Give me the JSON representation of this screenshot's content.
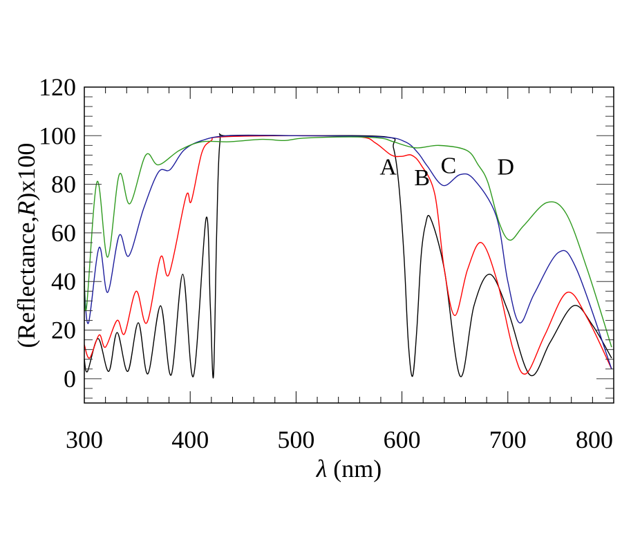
{
  "chart_data": {
    "type": "line",
    "title": "",
    "xlabel": {
      "symbol": "λ",
      "unit": " (nm)"
    },
    "ylabel": {
      "prefix": "(Reflectance,",
      "symbol": "R",
      "suffix": ")x100"
    },
    "xlim": [
      300,
      800
    ],
    "ylim": [
      -10,
      120
    ],
    "xticks": [
      300,
      400,
      500,
      600,
      700,
      800
    ],
    "yticks": [
      0,
      20,
      40,
      60,
      80,
      100,
      120
    ],
    "x_minor_step": 20,
    "y_minor_step": 4,
    "grid": false,
    "legend": "none",
    "series": [
      {
        "name": "A",
        "color": "#000000",
        "points": [
          [
            300,
            8
          ],
          [
            303,
            3
          ],
          [
            313,
            16.5
          ],
          [
            323,
            3
          ],
          [
            331,
            19
          ],
          [
            341,
            3
          ],
          [
            351,
            23
          ],
          [
            360,
            2
          ],
          [
            372,
            30
          ],
          [
            382,
            1.5
          ],
          [
            393,
            43
          ],
          [
            403,
            1
          ],
          [
            415,
            66
          ],
          [
            419,
            30
          ],
          [
            422,
            1
          ],
          [
            425,
            60
          ],
          [
            428,
            97
          ],
          [
            435,
            100
          ],
          [
            500,
            100
          ],
          [
            585,
            99.5
          ],
          [
            592,
            95
          ],
          [
            597,
            80
          ],
          [
            602,
            50
          ],
          [
            606,
            15
          ],
          [
            610,
            1
          ],
          [
            614,
            20
          ],
          [
            618,
            50
          ],
          [
            622,
            63
          ],
          [
            627,
            66
          ],
          [
            640,
            45
          ],
          [
            655,
            1
          ],
          [
            668,
            30
          ],
          [
            683,
            43
          ],
          [
            700,
            28
          ],
          [
            721,
            1.5
          ],
          [
            740,
            15
          ],
          [
            762,
            30
          ],
          [
            780,
            22
          ],
          [
            798,
            8.5
          ]
        ]
      },
      {
        "name": "B",
        "color": "#ff0000",
        "points": [
          [
            300,
            14
          ],
          [
            305,
            8.5
          ],
          [
            314,
            18
          ],
          [
            320,
            13
          ],
          [
            331,
            24
          ],
          [
            338,
            18.5
          ],
          [
            349,
            36
          ],
          [
            359,
            23
          ],
          [
            372,
            50
          ],
          [
            380,
            43
          ],
          [
            396,
            75
          ],
          [
            401,
            73
          ],
          [
            411,
            93
          ],
          [
            420,
            98
          ],
          [
            429,
            99.5
          ],
          [
            500,
            100
          ],
          [
            560,
            99.5
          ],
          [
            575,
            97
          ],
          [
            590,
            92
          ],
          [
            600,
            91.5
          ],
          [
            609,
            92
          ],
          [
            618,
            88
          ],
          [
            631,
            76
          ],
          [
            640,
            45
          ],
          [
            650,
            26
          ],
          [
            662,
            45
          ],
          [
            675,
            56
          ],
          [
            690,
            40
          ],
          [
            705,
            12
          ],
          [
            717,
            2
          ],
          [
            735,
            18
          ],
          [
            756,
            35.5
          ],
          [
            775,
            25
          ],
          [
            798,
            4
          ]
        ]
      },
      {
        "name": "C",
        "color": "#1c1c9c",
        "points": [
          [
            300,
            38
          ],
          [
            304,
            23
          ],
          [
            314,
            54
          ],
          [
            322,
            35.5
          ],
          [
            333,
            59
          ],
          [
            342,
            50.5
          ],
          [
            356,
            70
          ],
          [
            370,
            85
          ],
          [
            381,
            86
          ],
          [
            394,
            94
          ],
          [
            411,
            98
          ],
          [
            437,
            100
          ],
          [
            500,
            100
          ],
          [
            580,
            99.5
          ],
          [
            603,
            97.5
          ],
          [
            615,
            93
          ],
          [
            624,
            87.5
          ],
          [
            639,
            79.5
          ],
          [
            655,
            84
          ],
          [
            668,
            82
          ],
          [
            689,
            67
          ],
          [
            700,
            40
          ],
          [
            711,
            23
          ],
          [
            725,
            35
          ],
          [
            748,
            52
          ],
          [
            765,
            45
          ],
          [
            798,
            4
          ]
        ]
      },
      {
        "name": "D",
        "color": "#2e9a1e",
        "points": [
          [
            300,
            46
          ],
          [
            302,
            29
          ],
          [
            312,
            81
          ],
          [
            322,
            50
          ],
          [
            333,
            84
          ],
          [
            343,
            72
          ],
          [
            358,
            92
          ],
          [
            370,
            88
          ],
          [
            390,
            94
          ],
          [
            411,
            97.5
          ],
          [
            437,
            97.5
          ],
          [
            468,
            98.5
          ],
          [
            489,
            98
          ],
          [
            507,
            99
          ],
          [
            550,
            99.5
          ],
          [
            580,
            99
          ],
          [
            592,
            97.5
          ],
          [
            613,
            95
          ],
          [
            635,
            96
          ],
          [
            661,
            94
          ],
          [
            672,
            88
          ],
          [
            681,
            81
          ],
          [
            692,
            64
          ],
          [
            702,
            57
          ],
          [
            715,
            63
          ],
          [
            737,
            72.5
          ],
          [
            755,
            68
          ],
          [
            775,
            45
          ],
          [
            798,
            13
          ]
        ]
      }
    ],
    "annotations": [
      {
        "text": "A",
        "x": 587,
        "y": 87.5
      },
      {
        "text": "B",
        "x": 619,
        "y": 83
      },
      {
        "text": "C",
        "x": 644,
        "y": 88
      },
      {
        "text": "D",
        "x": 698,
        "y": 87.5
      }
    ]
  }
}
